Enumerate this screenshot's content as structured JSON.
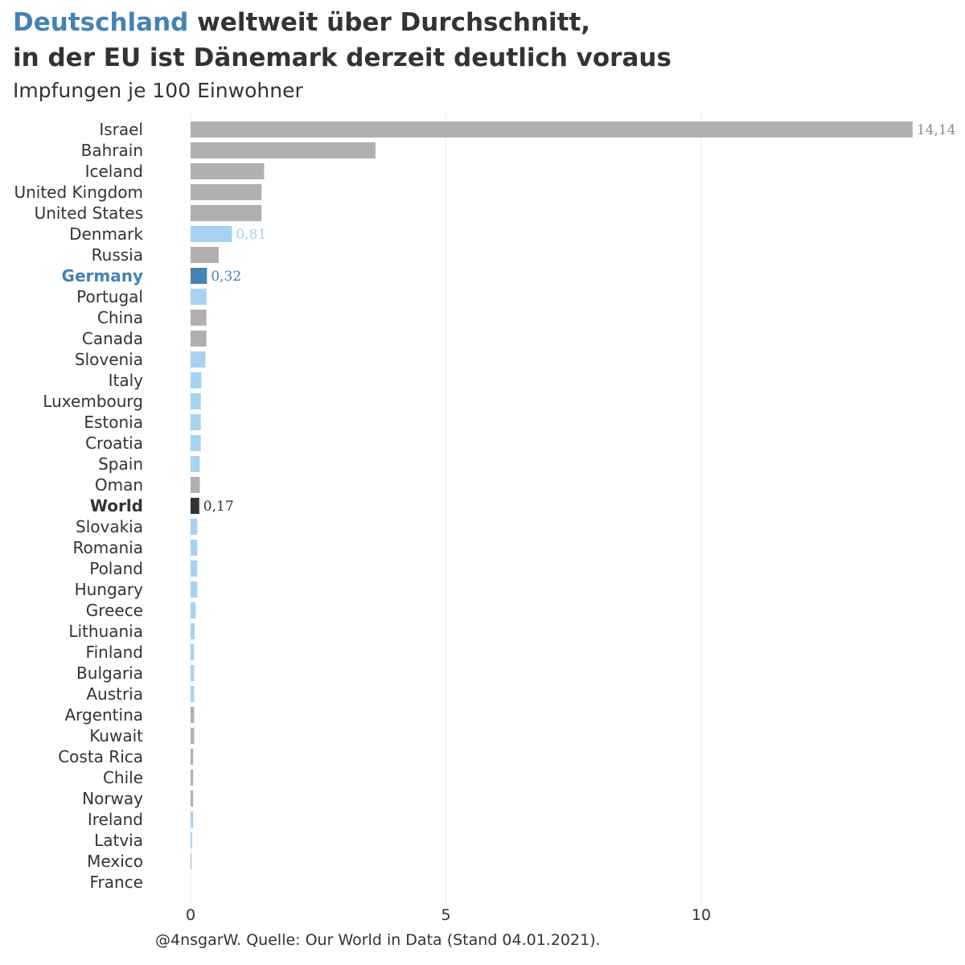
{
  "header": {
    "title_highlight": "Deutschland",
    "title_line1_rest": " weltweit über Durchschnitt,",
    "title_line2": "in der EU ist Dänemark derzeit deutlich voraus",
    "subtitle": "Impfungen je 100 Einwohner"
  },
  "footer": {
    "caption": "@4nsgarW. Quelle: Our World in Data (Stand 04.01.2021)."
  },
  "colors": {
    "highlight": "#4682b4",
    "eu": "#a6d1f0",
    "non_eu": "#b0b0b0",
    "world": "#333333",
    "text": "#333333",
    "grid": "#efefef"
  },
  "chart_data": {
    "type": "bar",
    "orientation": "horizontal",
    "categories": [
      "Israel",
      "Bahrain",
      "Iceland",
      "United Kingdom",
      "United States",
      "Denmark",
      "Russia",
      "Germany",
      "Portugal",
      "China",
      "Canada",
      "Slovenia",
      "Italy",
      "Luxembourg",
      "Estonia",
      "Croatia",
      "Spain",
      "Oman",
      "World",
      "Slovakia",
      "Romania",
      "Poland",
      "Hungary",
      "Greece",
      "Lithuania",
      "Finland",
      "Bulgaria",
      "Austria",
      "Argentina",
      "Kuwait",
      "Costa Rica",
      "Chile",
      "Norway",
      "Ireland",
      "Latvia",
      "Mexico",
      "France"
    ],
    "values": [
      14.14,
      3.62,
      1.44,
      1.39,
      1.39,
      0.81,
      0.55,
      0.32,
      0.31,
      0.31,
      0.31,
      0.29,
      0.21,
      0.2,
      0.2,
      0.2,
      0.18,
      0.18,
      0.17,
      0.13,
      0.13,
      0.13,
      0.13,
      0.1,
      0.08,
      0.07,
      0.07,
      0.07,
      0.07,
      0.07,
      0.05,
      0.05,
      0.05,
      0.05,
      0.03,
      0.01,
      0.0
    ],
    "group": [
      "other",
      "other",
      "other",
      "other",
      "other",
      "eu",
      "other",
      "germany",
      "eu",
      "other",
      "other",
      "eu",
      "eu",
      "eu",
      "eu",
      "eu",
      "eu",
      "other",
      "world",
      "eu",
      "eu",
      "eu",
      "eu",
      "eu",
      "eu",
      "eu",
      "eu",
      "eu",
      "other",
      "other",
      "other",
      "other",
      "other",
      "eu",
      "eu",
      "other",
      "eu"
    ],
    "value_labels": {
      "Israel": "14,14",
      "Denmark": "0,81",
      "Germany": "0,32",
      "World": "0,17"
    },
    "x_ticks": [
      0,
      5,
      10
    ],
    "xlim": [
      0,
      14.14
    ],
    "xlabel": "",
    "ylabel": "",
    "grid": "vertical"
  }
}
